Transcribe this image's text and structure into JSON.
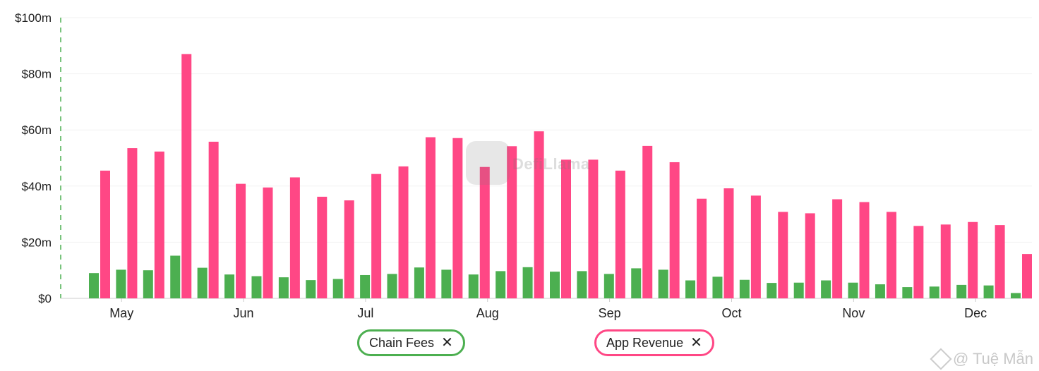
{
  "chart_data": {
    "type": "bar",
    "y_ticks": [
      "$100m",
      "$80m",
      "$60m",
      "$40m",
      "$20m",
      "$0"
    ],
    "y_tick_values": [
      100,
      80,
      60,
      40,
      20,
      0
    ],
    "ylim": [
      0,
      100
    ],
    "y_unit": "millions USD",
    "x_month_labels": [
      "May",
      "Jun",
      "Jul",
      "Aug",
      "Sep",
      "Oct",
      "Nov",
      "Dec"
    ],
    "x_month_label_week_index": [
      0.5,
      5,
      9.5,
      14,
      18.5,
      23,
      27.5,
      32
    ],
    "grid": true,
    "legend_placement": "bottom-center",
    "series": [
      {
        "name": "Chain Fees",
        "color": "#4caf50",
        "values": [
          9,
          10.2,
          10,
          15.2,
          10.9,
          8.5,
          7.9,
          7.5,
          6.5,
          6.9,
          8.3,
          8.7,
          11,
          10.2,
          8.5,
          9.7,
          11.1,
          9.5,
          9.7,
          8.7,
          10.7,
          10.2,
          6.4,
          7.7,
          6.6,
          5.5,
          5.6,
          6.4,
          5.6,
          5,
          4,
          4.2,
          4.8,
          4.6,
          1.9
        ]
      },
      {
        "name": "App Revenue",
        "color": "#ff4785",
        "values": [
          45.5,
          53.5,
          52.3,
          87,
          55.8,
          40.8,
          39.5,
          43.1,
          36.2,
          34.9,
          44.3,
          47,
          57.4,
          57.1,
          46.8,
          54.2,
          59.5,
          49.4,
          49.4,
          45.5,
          54.3,
          48.5,
          35.5,
          39.2,
          36.6,
          30.8,
          30.3,
          35.3,
          34.3,
          30.8,
          25.8,
          26.3,
          27.2,
          26.1,
          15.8
        ]
      }
    ]
  },
  "legend": {
    "chain_fees": {
      "label": "Chain Fees",
      "close": "✕"
    },
    "app_revenue": {
      "label": "App Revenue",
      "close": "✕"
    }
  },
  "watermark": {
    "text": "DefiLlama"
  },
  "credit": {
    "text": "@ Tuệ Mẫn"
  }
}
